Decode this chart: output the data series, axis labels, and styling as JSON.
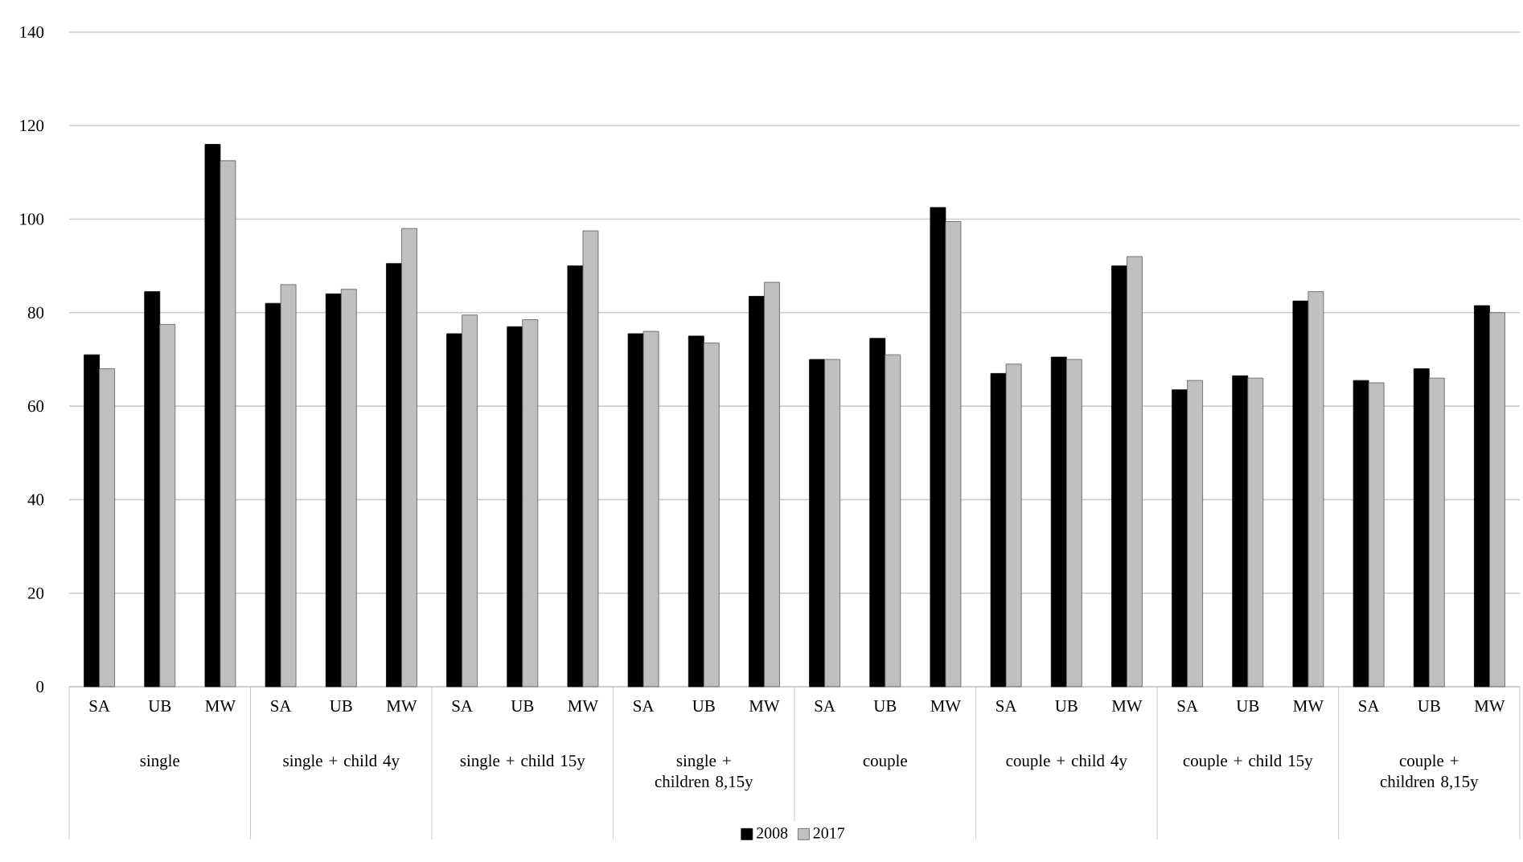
{
  "chart_data": {
    "type": "bar",
    "categories": [
      "SA",
      "UB",
      "MW",
      "SA",
      "UB",
      "MW",
      "SA",
      "UB",
      "MW",
      "SA",
      "UB",
      "MW",
      "SA",
      "UB",
      "MW",
      "SA",
      "UB",
      "MW",
      "SA",
      "UB",
      "MW",
      "SA",
      "UB",
      "MW"
    ],
    "series": [
      {
        "name": "2008",
        "color": "#000000",
        "values": [
          71,
          84.5,
          116,
          82,
          84,
          90.5,
          75.5,
          77,
          90,
          75.5,
          75,
          83.5,
          70,
          74.5,
          102.5,
          67,
          70.5,
          90,
          63.5,
          66.5,
          82.5,
          65.5,
          68,
          81.5
        ]
      },
      {
        "name": "2017",
        "color": "#c0c0c0",
        "values": [
          68,
          77.5,
          112.5,
          86,
          85,
          98,
          79.5,
          78.5,
          97.5,
          76,
          73.5,
          86.5,
          70,
          71,
          99.5,
          69,
          70,
          92,
          65.5,
          66,
          84.5,
          65,
          66,
          80
        ]
      }
    ],
    "annotations": [
      "single",
      "single + child 4y",
      "single + child 15y",
      "single + children 8,15y",
      "couple",
      "couple + child 4y",
      "couple + child 15y",
      "couple + children 8,15y"
    ],
    "ylim": [
      0,
      140
    ],
    "yticks": [
      0,
      20,
      40,
      60,
      80,
      100,
      120,
      140
    ],
    "grid": "y",
    "legend": "bottom"
  }
}
